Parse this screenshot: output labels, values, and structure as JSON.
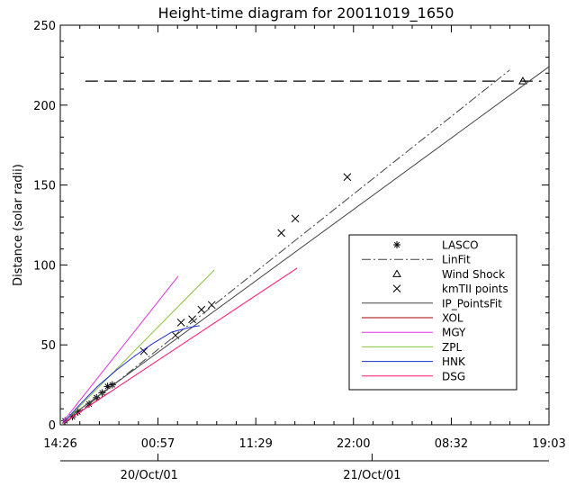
{
  "chart_data": {
    "type": "line",
    "title": "Height-time diagram for 20011019_1650",
    "ylabel": "Distance (solar radii)",
    "xlabel": "",
    "ylim": [
      0,
      250
    ],
    "x_unit": "hours since 19/Oct/01 14:26 UT",
    "xlim": [
      0,
      52.6167
    ],
    "x_ticks": [
      {
        "x": 0,
        "label": "14:26"
      },
      {
        "x": 10.5167,
        "label": "00:57"
      },
      {
        "x": 21.05,
        "label": "11:29"
      },
      {
        "x": 31.5667,
        "label": "22:00"
      },
      {
        "x": 42.1,
        "label": "08:32"
      },
      {
        "x": 52.6167,
        "label": "19:03"
      }
    ],
    "y_ticks": [
      0,
      50,
      100,
      150,
      200,
      250
    ],
    "date_axis": [
      {
        "x": 9.5667,
        "label": "20/Oct/01"
      },
      {
        "x": 33.5667,
        "label": "21/Oct/01"
      }
    ],
    "reference_line": {
      "y": 215,
      "x_from": 2.7,
      "x_to": 51.8,
      "style": "dashed"
    },
    "legend": {
      "position": "lower-right",
      "entries": [
        {
          "name": "LASCO",
          "marker": "asterisk"
        },
        {
          "name": "LinFit",
          "line": "dash-dot",
          "color": "#444444"
        },
        {
          "name": "Wind Shock",
          "marker": "triangle"
        },
        {
          "name": "kmTII points",
          "marker": "cross"
        },
        {
          "name": "IP_PointsFit",
          "color": "#444444"
        },
        {
          "name": "XOL",
          "color": "#a00000"
        },
        {
          "name": "MGY",
          "color": "#e030e0"
        },
        {
          "name": "ZPL",
          "color": "#8ac23a"
        },
        {
          "name": "HNK",
          "color": "#1b2fd0"
        },
        {
          "name": "DSG",
          "color": "#ff1478"
        }
      ]
    },
    "series": [
      {
        "name": "LASCO",
        "kind": "points",
        "marker": "asterisk",
        "x": [
          0.5,
          1.3,
          1.9,
          3.1,
          3.9,
          4.5,
          5.1,
          5.6
        ],
        "y": [
          2.5,
          5,
          8,
          13,
          17,
          20,
          24,
          25
        ]
      },
      {
        "name": "kmTII points",
        "kind": "points",
        "marker": "cross",
        "x": [
          9.0,
          12.4,
          13.0,
          14.2,
          15.2,
          16.3,
          23.8,
          25.3,
          30.9
        ],
        "y": [
          46,
          56,
          64,
          66,
          72,
          75,
          120,
          129,
          155
        ]
      },
      {
        "name": "Wind Shock",
        "kind": "points",
        "marker": "triangle",
        "x": [
          49.8
        ],
        "y": [
          215
        ]
      },
      {
        "name": "IP_PointsFit",
        "kind": "line",
        "style": "solid",
        "color": "#444444",
        "x": [
          0.3,
          52.6
        ],
        "y": [
          2,
          224
        ]
      },
      {
        "name": "LinFit",
        "kind": "line",
        "style": "dash-dot",
        "color": "#444444",
        "x": [
          0.3,
          48.4
        ],
        "y": [
          0,
          222
        ]
      },
      {
        "name": "XOL",
        "kind": "line",
        "style": "solid",
        "color": "#a00000",
        "x": [
          0.3,
          5.2
        ],
        "y": [
          1,
          20
        ]
      },
      {
        "name": "MGY",
        "kind": "line",
        "style": "solid",
        "color": "#e030e0",
        "x": [
          0.3,
          12.7
        ],
        "y": [
          2,
          93
        ]
      },
      {
        "name": "ZPL",
        "kind": "line",
        "style": "solid",
        "color": "#8ac23a",
        "x": [
          0.3,
          16.6
        ],
        "y": [
          1,
          97
        ]
      },
      {
        "name": "HNK",
        "kind": "line",
        "style": "solid",
        "color": "#1b2fd0",
        "x": [
          0.3,
          2.0,
          4.0,
          6.0,
          8.0,
          10.0,
          12.0,
          14.0,
          15.0
        ],
        "y": [
          1,
          12,
          24,
          34,
          43,
          51,
          58,
          61,
          62
        ]
      },
      {
        "name": "DSG",
        "kind": "line",
        "style": "solid",
        "color": "#ff1478",
        "x": [
          0.3,
          25.5
        ],
        "y": [
          1,
          98
        ]
      }
    ]
  }
}
